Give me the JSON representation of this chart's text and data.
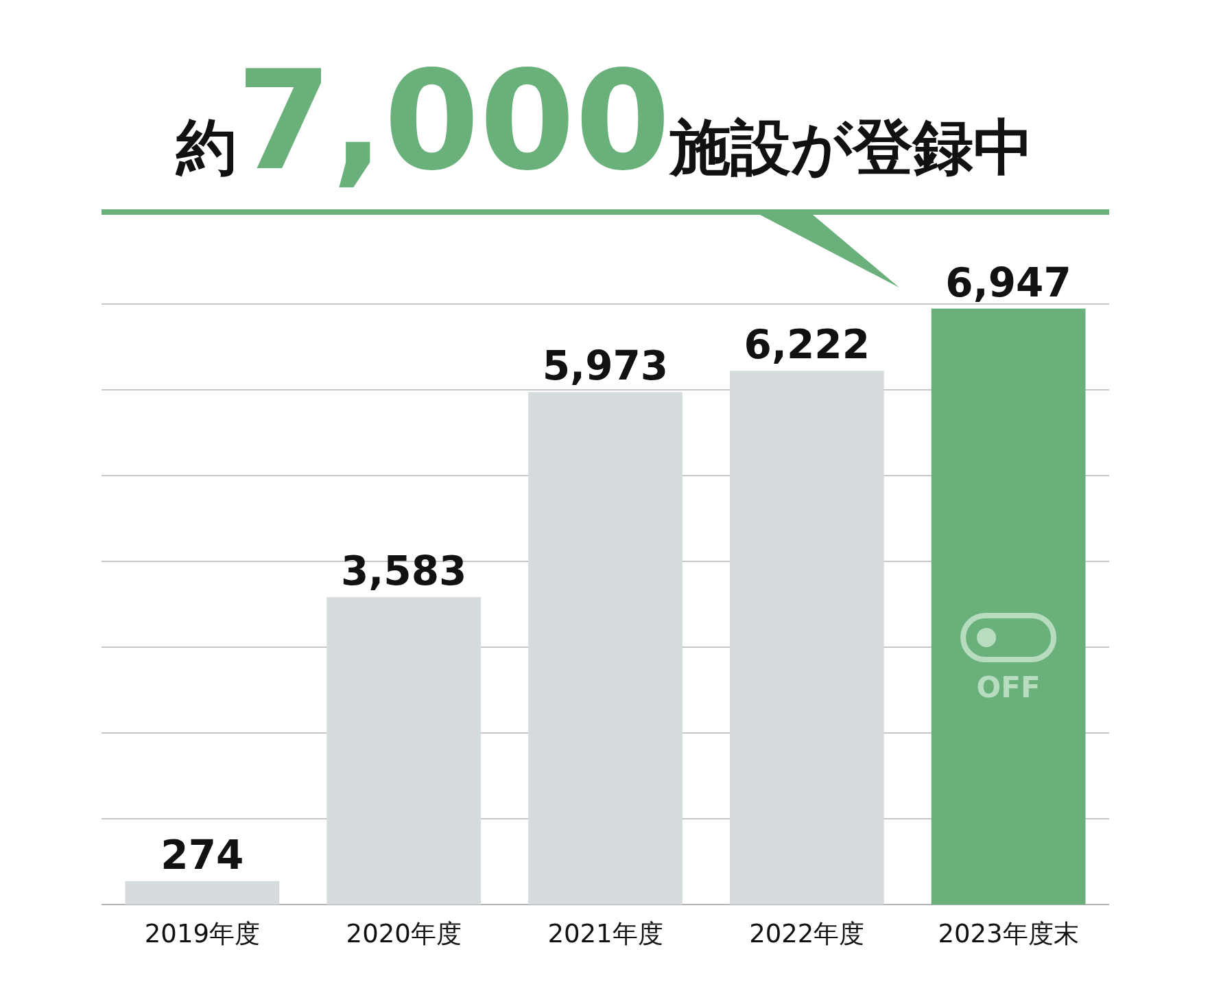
{
  "chart_data": {
    "type": "bar",
    "title": "約7,000施設が登録中",
    "categories": [
      "2019年度",
      "2020年度",
      "2021年度",
      "2022年度",
      "2023年度末"
    ],
    "values": [
      274,
      3583,
      5973,
      6222,
      6947
    ],
    "value_labels": [
      "274",
      "3,583",
      "5,973",
      "6,222",
      "6,947"
    ],
    "colors": [
      "#d6dbde",
      "#d6dbde",
      "#d6dbde",
      "#d6dbde",
      "#69b07b"
    ],
    "ylim": [
      0,
      7000
    ],
    "yticks": [
      {
        "value": 0,
        "label": null
      },
      {
        "value": 1000,
        "label": null
      },
      {
        "value": 2000,
        "label": null
      },
      {
        "value": 3000,
        "label": null
      },
      {
        "value": 4000,
        "label": null
      },
      {
        "value": 5000,
        "label": null
      },
      {
        "value": 6000,
        "label": null
      },
      {
        "value": 7000,
        "label": null
      }
    ],
    "grid": "y",
    "annotations": [
      "OFF"
    ]
  }
}
